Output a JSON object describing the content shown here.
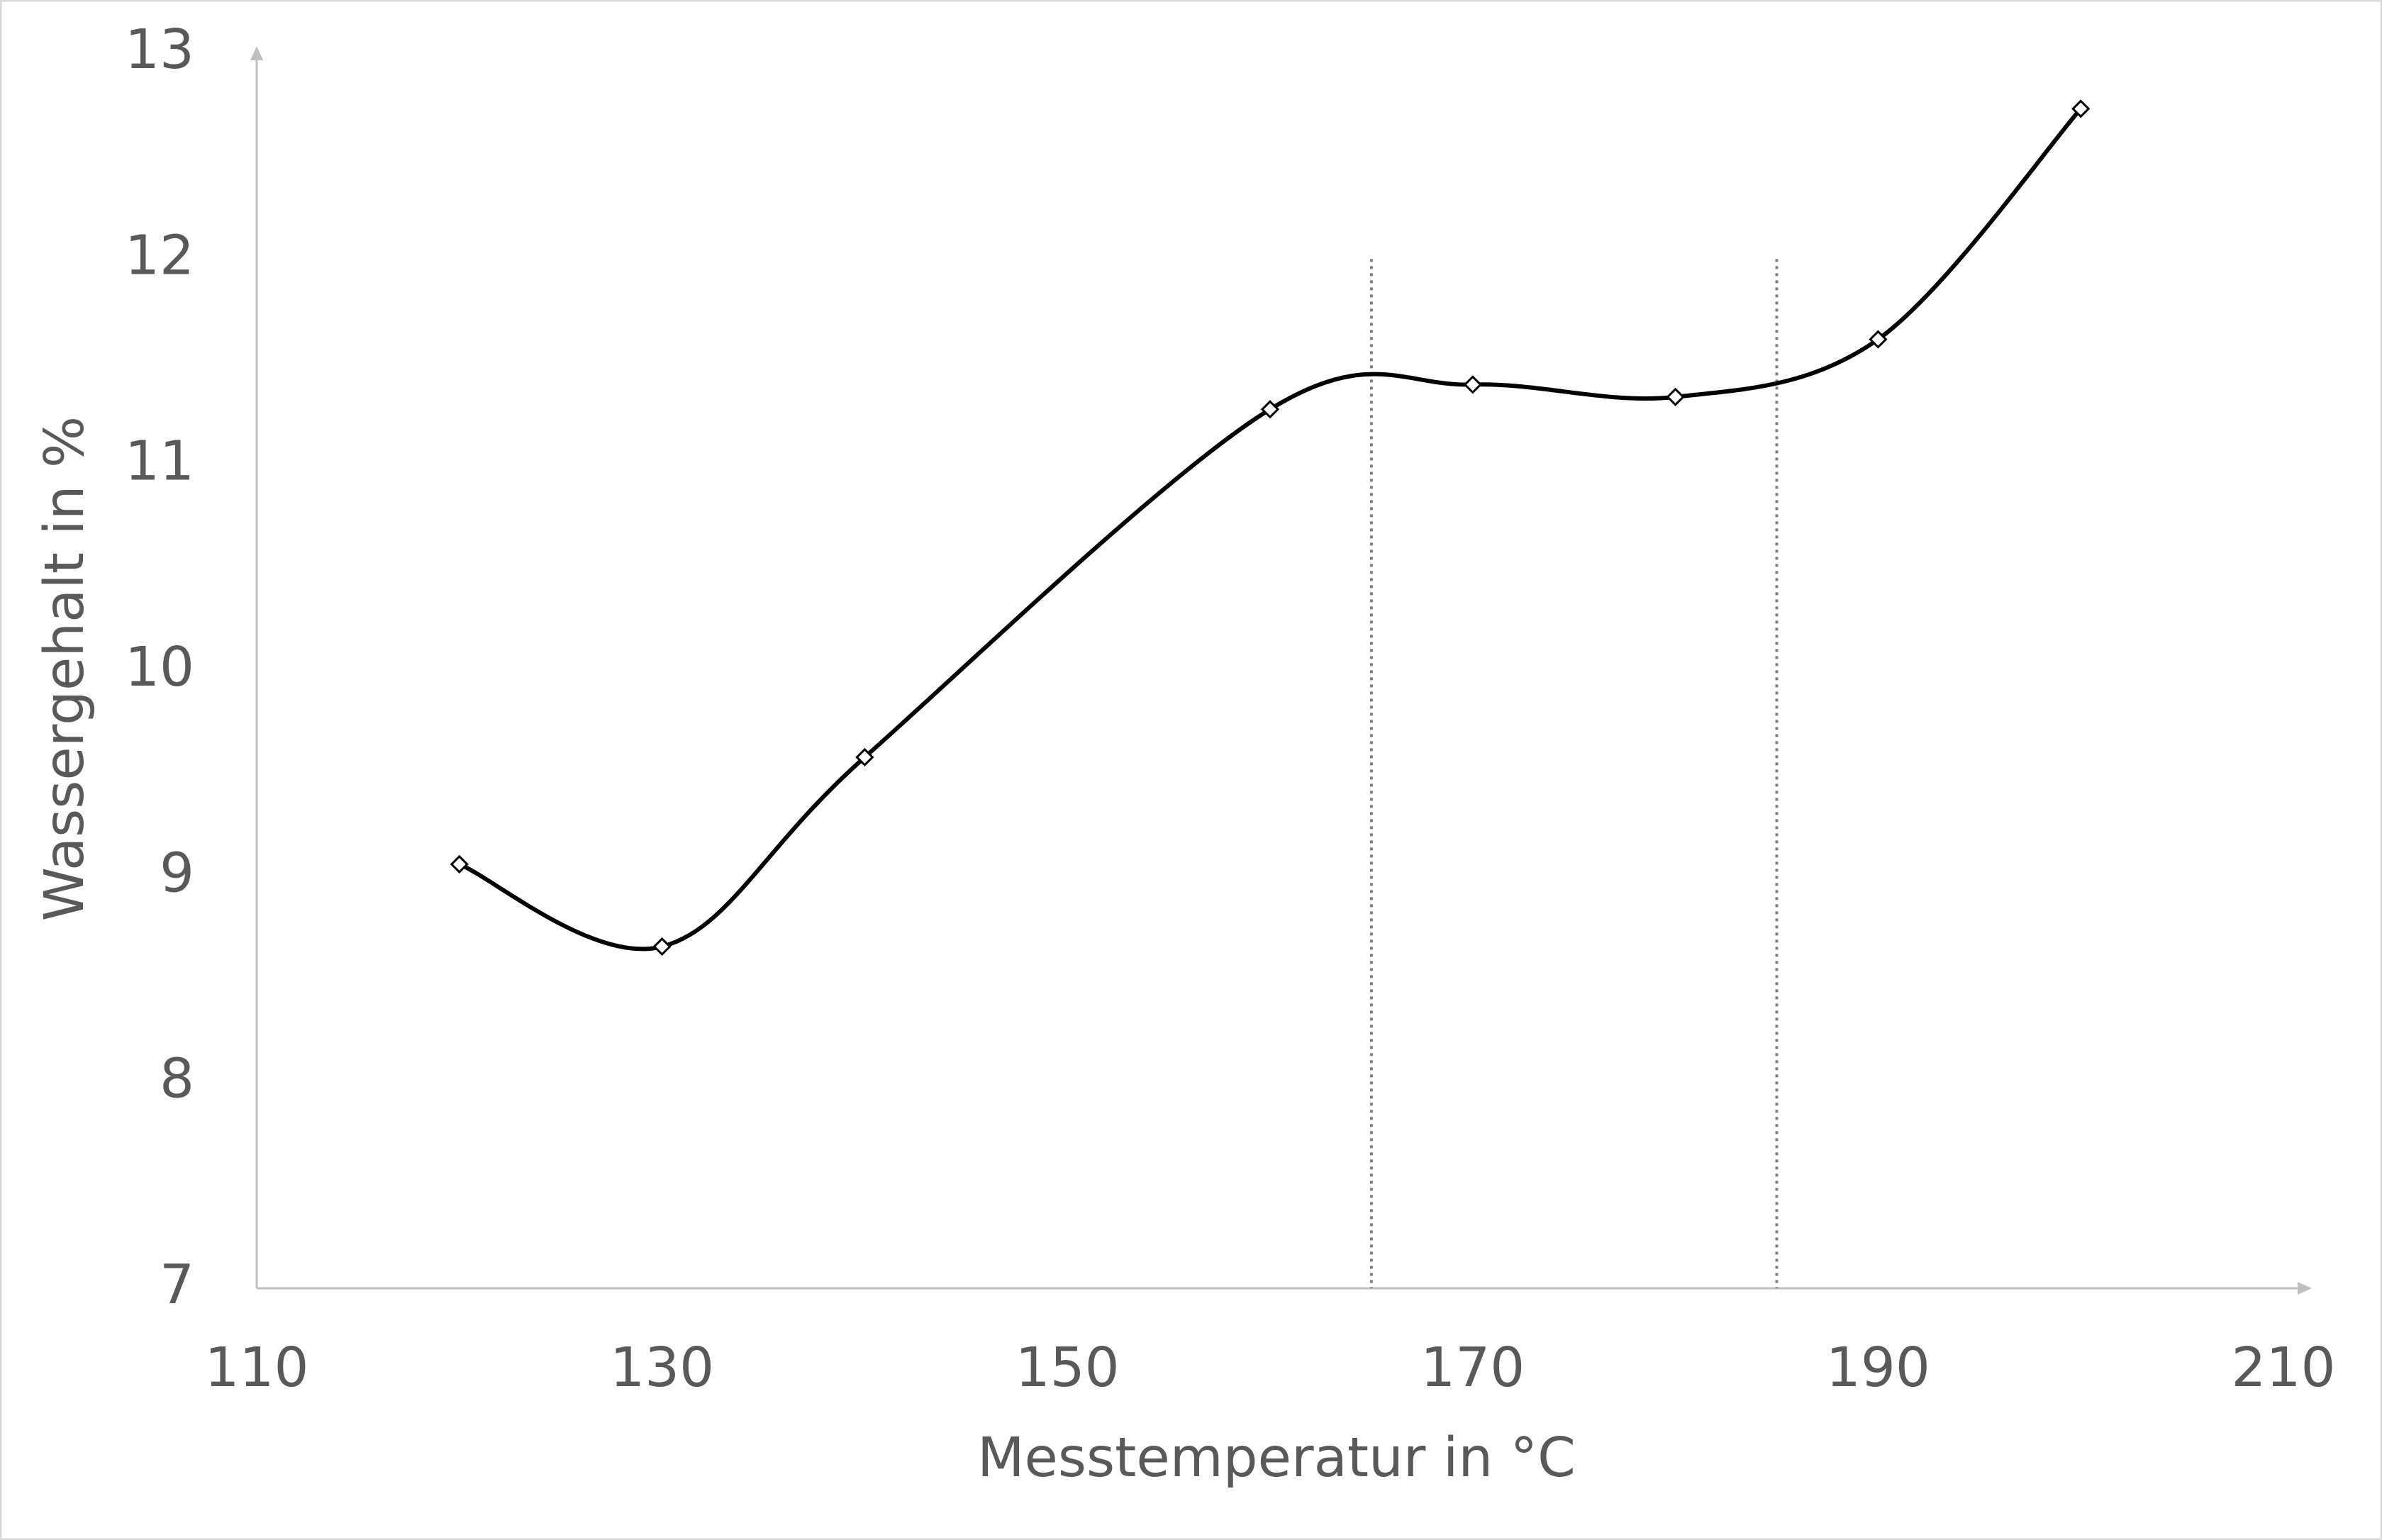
{
  "chart_data": {
    "type": "scatter-smooth",
    "x_label": "Messtemperatur in °C",
    "y_label": "Wassergehalt in %",
    "x": [
      120,
      130,
      140,
      160,
      170,
      180,
      190,
      200
    ],
    "values": [
      9.06,
      8.66,
      9.58,
      11.27,
      11.39,
      11.33,
      11.61,
      12.73
    ],
    "color": "#000000",
    "xlim": [
      110,
      210
    ],
    "xticks": [
      110,
      130,
      150,
      170,
      190,
      210
    ],
    "ylim": [
      7,
      13
    ],
    "yticks": [
      7,
      8,
      9,
      10,
      11,
      12,
      13
    ],
    "reference_lines": [
      {
        "x": 165,
        "y_top": 12
      },
      {
        "x": 185,
        "y_top": 12
      }
    ],
    "grid": false
  }
}
